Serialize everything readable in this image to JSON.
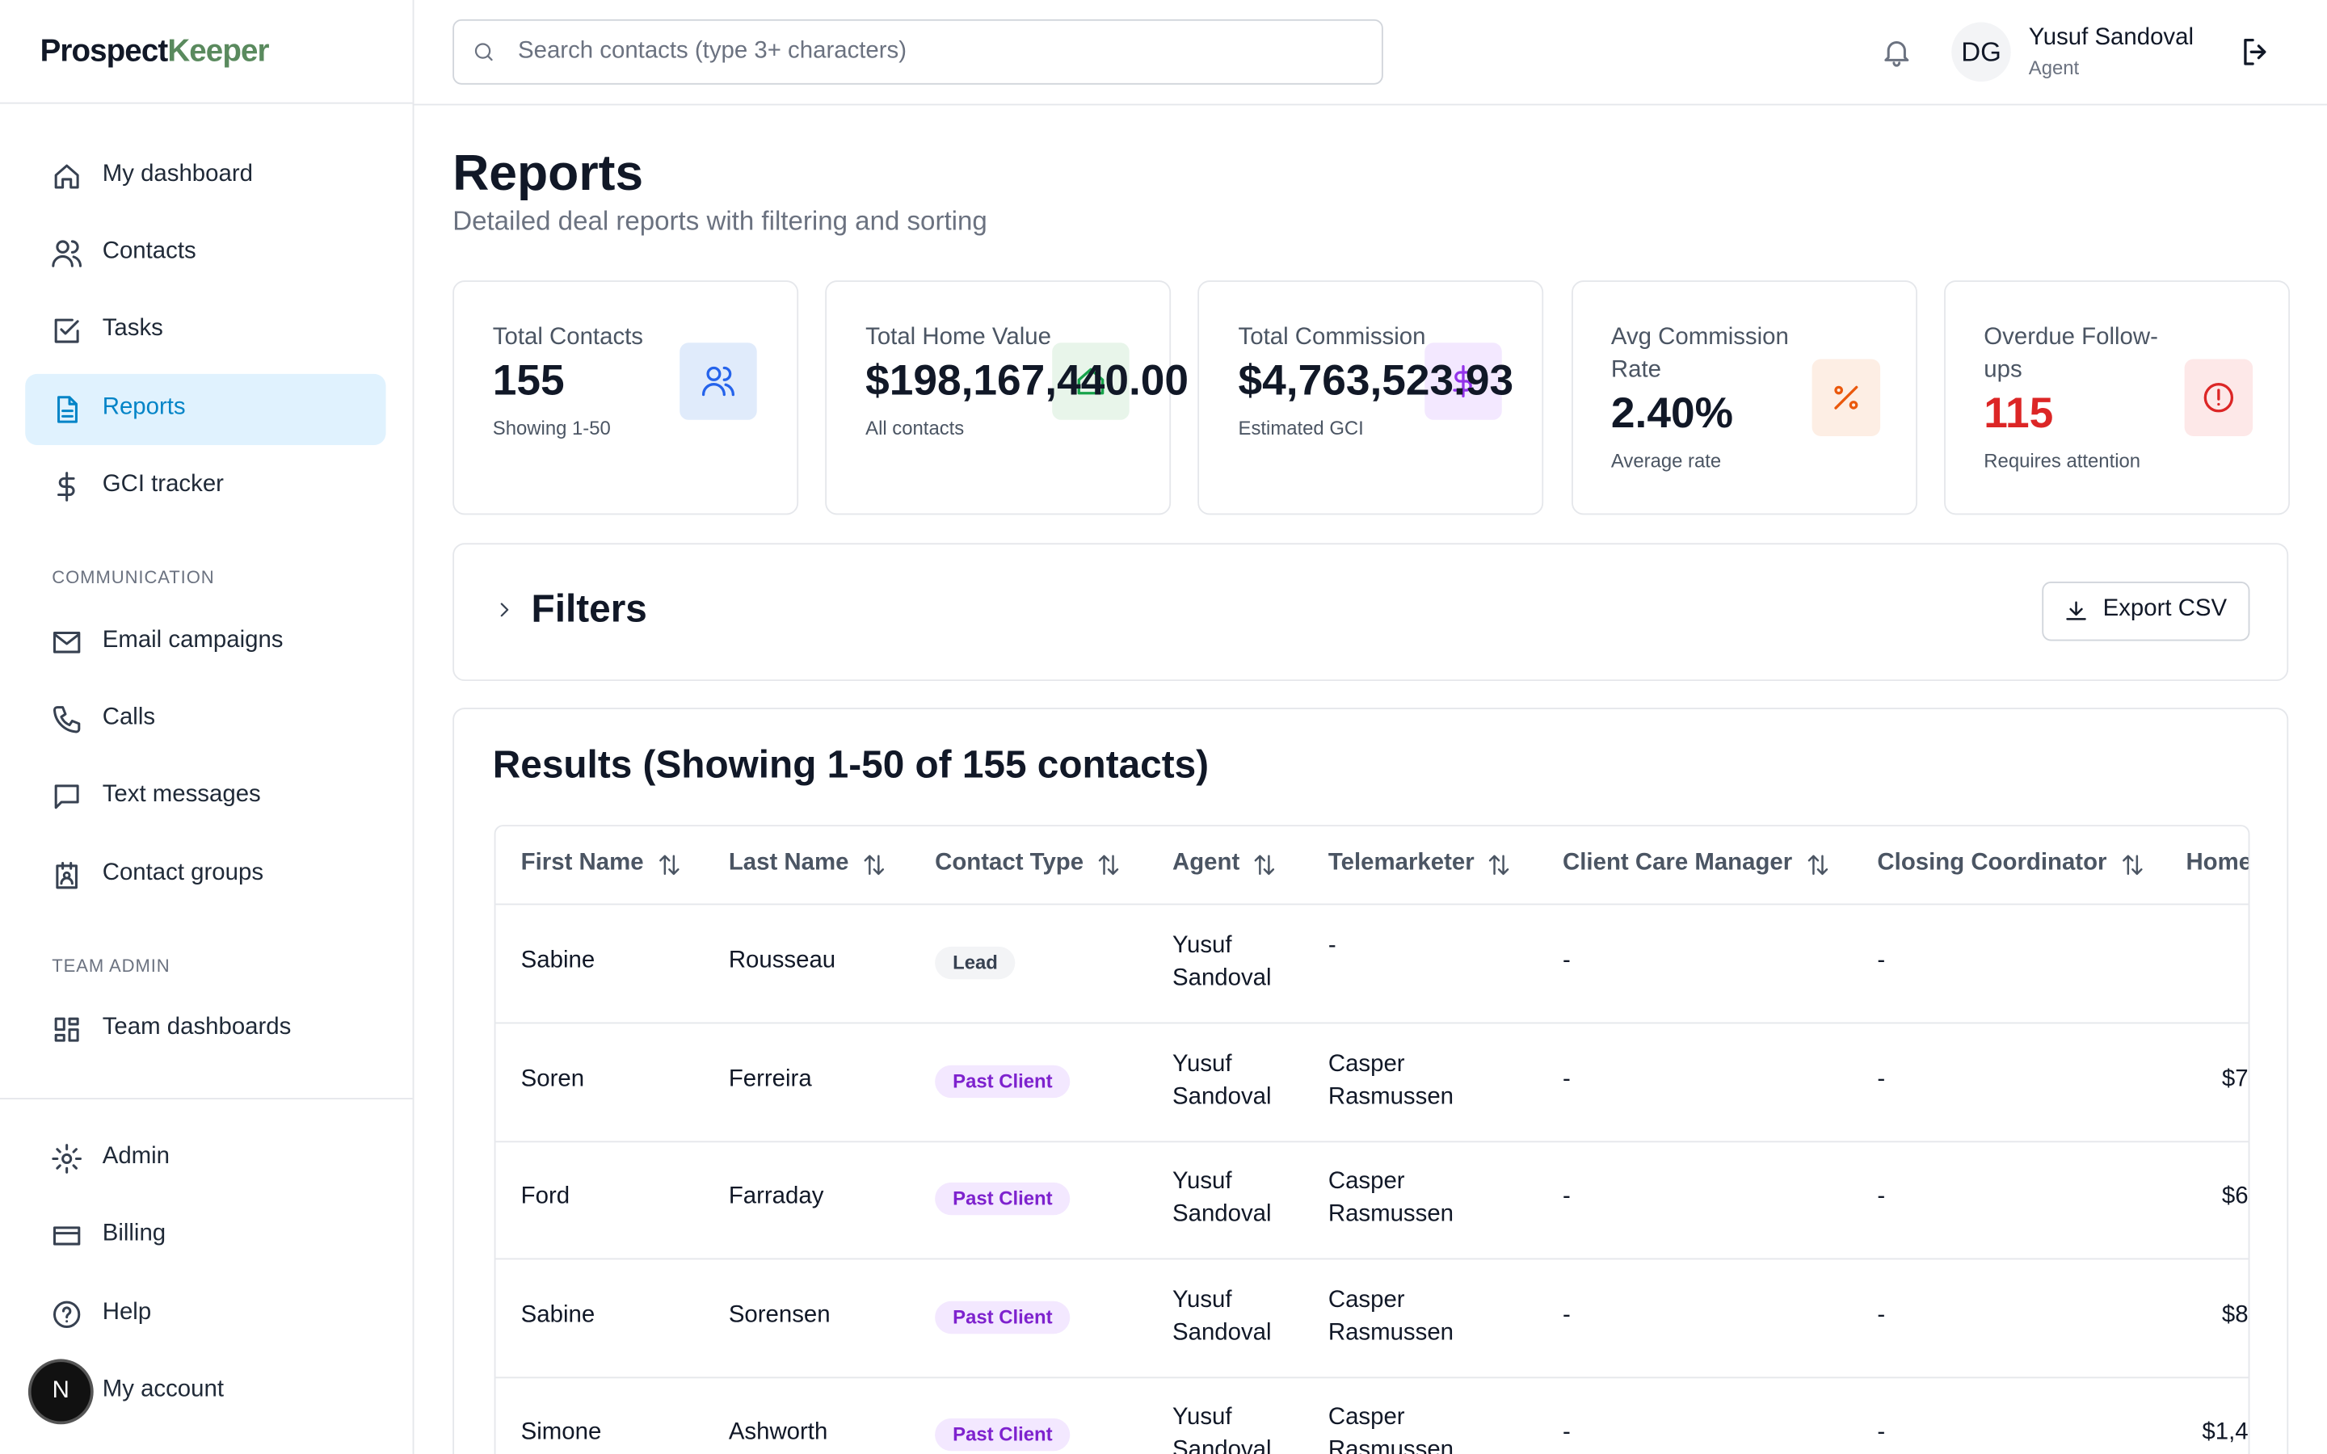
{
  "brand": {
    "prospect": "Prospect",
    "keeper": "Keeper"
  },
  "nav": {
    "main": [
      "My dashboard",
      "Contacts",
      "Tasks",
      "Reports",
      "GCI tracker"
    ],
    "communication_label": "COMMUNICATION",
    "communication": [
      "Email campaigns",
      "Calls",
      "Text messages",
      "Contact groups"
    ],
    "team_label": "TEAM ADMIN",
    "team": [
      "Team dashboards"
    ],
    "bottom": [
      "Admin",
      "Billing",
      "Help",
      "My account"
    ],
    "avatar": "N"
  },
  "header": {
    "search_placeholder": "Search contacts (type 3+ characters)",
    "initials": "DG",
    "user_name": "Yusuf Sandoval",
    "user_role": "Agent"
  },
  "page": {
    "title": "Reports",
    "subtitle": "Detailed deal reports with filtering and sorting"
  },
  "stats": [
    {
      "label": "Total Contacts",
      "value": "155",
      "note": "Showing 1-50"
    },
    {
      "label": "Total Home Value",
      "value": "$198,167,440.00",
      "note": "All contacts"
    },
    {
      "label": "Total Commission",
      "value": "$4,763,523.93",
      "note": "Estimated GCI"
    },
    {
      "label": "Avg Commission Rate",
      "value": "2.40%",
      "note": "Average rate"
    },
    {
      "label": "Overdue Follow-ups",
      "value": "115",
      "note": "Requires attention"
    }
  ],
  "filters": {
    "title": "Filters",
    "export": "Export CSV"
  },
  "results": {
    "title": "Results (Showing 1-50 of 155 contacts)",
    "columns": [
      "First Name",
      "Last Name",
      "Contact Type",
      "Agent",
      "Telemarketer",
      "Client Care Manager",
      "Closing Coordinator",
      "Home"
    ],
    "rows": [
      [
        "Sabine",
        "Rousseau",
        "Lead",
        "Yusuf Sandoval",
        "-",
        "-",
        "-",
        null
      ],
      [
        "Soren",
        "Ferreira",
        "Past Client",
        "Yusuf Sandoval",
        "Casper Rasmussen",
        "-",
        "-",
        "$7"
      ],
      [
        "Ford",
        "Farraday",
        "Past Client",
        "Yusuf Sandoval",
        "Casper Rasmussen",
        "-",
        "-",
        "$6"
      ],
      [
        "Sabine",
        "Sorensen",
        "Past Client",
        "Yusuf Sandoval",
        "Casper Rasmussen",
        "-",
        "-",
        "$8"
      ],
      [
        "Simone",
        "Ashworth",
        "Past Client",
        "Yusuf Sandoval",
        "Casper Rasmussen",
        "-",
        "-",
        "$1,4"
      ]
    ]
  }
}
